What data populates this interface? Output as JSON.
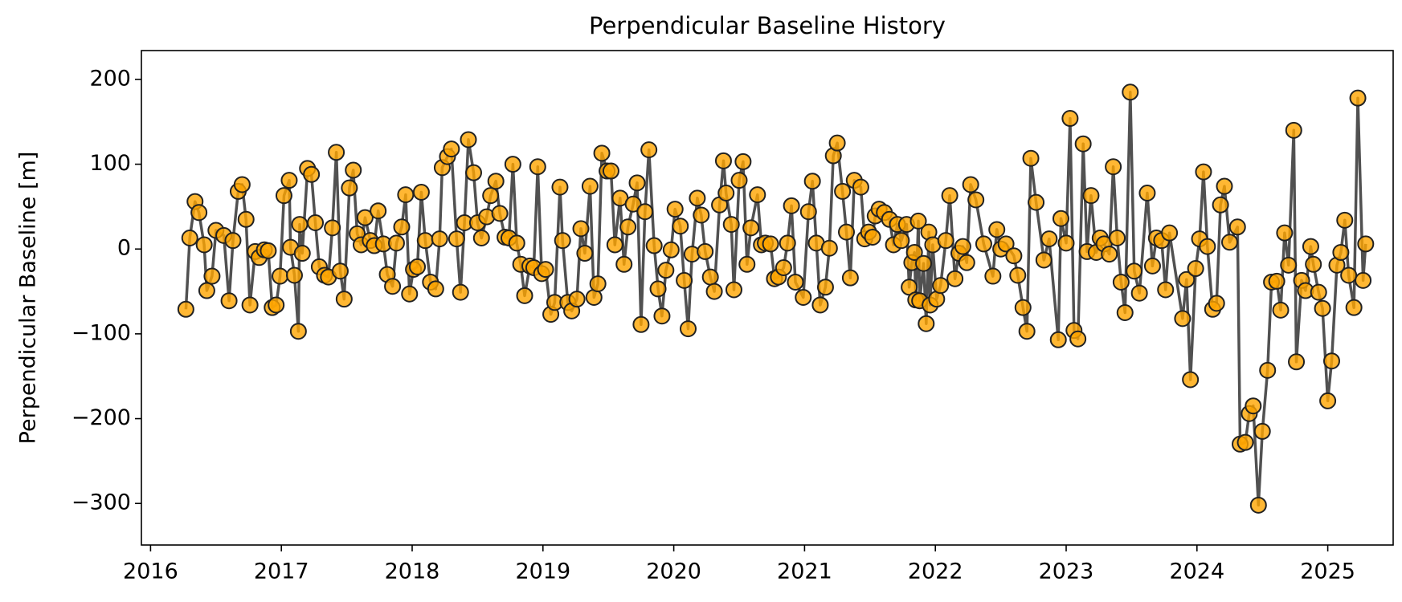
{
  "chart_data": {
    "type": "line",
    "title": "Perpendicular Baseline History",
    "ylabel": "Perpendicular Baseline [m]",
    "color": "#ffa500",
    "line_color": "#333333",
    "marker_edge_color": "#222222",
    "xlim": [
      2015.93,
      2025.5
    ],
    "ylim": [
      -349,
      234
    ],
    "xticks": [
      2016,
      2017,
      2018,
      2019,
      2020,
      2021,
      2022,
      2023,
      2024,
      2025
    ],
    "yticks": [
      {
        "value": -300,
        "label": "−300"
      },
      {
        "value": -200,
        "label": "−200"
      },
      {
        "value": -100,
        "label": "−100"
      },
      0,
      100,
      200
    ],
    "x": [
      2016.27,
      2016.3,
      2016.34,
      2016.37,
      2016.41,
      2016.43,
      2016.47,
      2016.5,
      2016.56,
      2016.6,
      2016.63,
      2016.67,
      2016.7,
      2016.73,
      2016.76,
      2016.8,
      2016.83,
      2016.87,
      2016.9,
      2016.93,
      2016.96,
      2016.99,
      2017.02,
      2017.06,
      2017.07,
      2017.1,
      2017.13,
      2017.14,
      2017.16,
      2017.2,
      2017.23,
      2017.26,
      2017.29,
      2017.33,
      2017.36,
      2017.39,
      2017.42,
      2017.45,
      2017.48,
      2017.52,
      2017.55,
      2017.58,
      2017.61,
      2017.64,
      2017.68,
      2017.71,
      2017.74,
      2017.78,
      2017.81,
      2017.85,
      2017.88,
      2017.92,
      2017.95,
      2017.98,
      2018.01,
      2018.04,
      2018.07,
      2018.1,
      2018.14,
      2018.18,
      2018.21,
      2018.23,
      2018.27,
      2018.3,
      2018.34,
      2018.37,
      2018.4,
      2018.43,
      2018.47,
      2018.5,
      2018.53,
      2018.57,
      2018.6,
      2018.64,
      2018.67,
      2018.71,
      2018.74,
      2018.77,
      2018.8,
      2018.83,
      2018.86,
      2018.9,
      2018.93,
      2018.96,
      2018.99,
      2019.02,
      2019.06,
      2019.09,
      2019.13,
      2019.15,
      2019.19,
      2019.22,
      2019.26,
      2019.29,
      2019.32,
      2019.36,
      2019.39,
      2019.42,
      2019.45,
      2019.49,
      2019.52,
      2019.55,
      2019.59,
      2019.62,
      2019.65,
      2019.69,
      2019.72,
      2019.75,
      2019.78,
      2019.81,
      2019.85,
      2019.88,
      2019.91,
      2019.94,
      2019.98,
      2020.01,
      2020.05,
      2020.08,
      2020.11,
      2020.14,
      2020.18,
      2020.21,
      2020.24,
      2020.28,
      2020.31,
      2020.35,
      2020.38,
      2020.4,
      2020.44,
      2020.46,
      2020.5,
      2020.53,
      2020.56,
      2020.59,
      2020.64,
      2020.67,
      2020.7,
      2020.74,
      2020.77,
      2020.8,
      2020.84,
      2020.87,
      2020.9,
      2020.93,
      2020.99,
      2021.03,
      2021.06,
      2021.09,
      2021.12,
      2021.16,
      2021.19,
      2021.22,
      2021.25,
      2021.29,
      2021.32,
      2021.35,
      2021.38,
      2021.43,
      2021.46,
      2021.49,
      2021.52,
      2021.54,
      2021.57,
      2021.61,
      2021.65,
      2021.68,
      2021.71,
      2021.74,
      2021.78,
      2021.8,
      2021.82,
      2021.84,
      2021.85,
      2021.87,
      2021.88,
      2021.91,
      2021.93,
      2021.95,
      2021.96,
      2021.98,
      2022.01,
      2022.04,
      2022.08,
      2022.11,
      2022.15,
      2022.18,
      2022.21,
      2022.24,
      2022.27,
      2022.31,
      2022.37,
      2022.44,
      2022.47,
      2022.5,
      2022.54,
      2022.6,
      2022.63,
      2022.67,
      2022.7,
      2022.73,
      2022.77,
      2022.83,
      2022.87,
      2022.94,
      2022.96,
      2023.0,
      2023.03,
      2023.06,
      2023.09,
      2023.13,
      2023.16,
      2023.19,
      2023.23,
      2023.26,
      2023.29,
      2023.33,
      2023.36,
      2023.39,
      2023.42,
      2023.45,
      2023.49,
      2023.52,
      2023.56,
      2023.62,
      2023.66,
      2023.69,
      2023.73,
      2023.76,
      2023.79,
      2023.89,
      2023.92,
      2023.95,
      2023.99,
      2024.02,
      2024.05,
      2024.08,
      2024.12,
      2024.15,
      2024.18,
      2024.21,
      2024.25,
      2024.31,
      2024.33,
      2024.37,
      2024.4,
      2024.43,
      2024.47,
      2024.5,
      2024.54,
      2024.57,
      2024.61,
      2024.64,
      2024.67,
      2024.7,
      2024.74,
      2024.76,
      2024.8,
      2024.83,
      2024.87,
      2024.89,
      2024.93,
      2024.96,
      2025.0,
      2025.03,
      2025.07,
      2025.1,
      2025.13,
      2025.16,
      2025.2,
      2025.23,
      2025.27,
      2025.29
    ],
    "values": [
      -71,
      13,
      56,
      43,
      5,
      -49,
      -32,
      22,
      16,
      -61,
      10,
      68,
      76,
      35,
      -66,
      -3,
      -10,
      -1,
      -2,
      -69,
      -66,
      -32,
      63,
      81,
      2,
      -31,
      -97,
      29,
      -5,
      95,
      88,
      31,
      -21,
      -31,
      -33,
      25,
      114,
      -26,
      -59,
      72,
      93,
      18,
      5,
      37,
      10,
      4,
      45,
      6,
      -30,
      -44,
      7,
      26,
      64,
      -53,
      -24,
      -21,
      67,
      10,
      -39,
      -47,
      12,
      96,
      109,
      118,
      12,
      -51,
      31,
      129,
      90,
      31,
      13,
      38,
      63,
      80,
      42,
      14,
      13,
      100,
      7,
      -18,
      -55,
      -20,
      -22,
      97,
      -29,
      -24,
      -77,
      -63,
      73,
      10,
      -63,
      -73,
      -59,
      24,
      -5,
      74,
      -57,
      -41,
      113,
      92,
      92,
      5,
      60,
      -18,
      26,
      53,
      78,
      -89,
      44,
      117,
      4,
      -47,
      -79,
      -25,
      -1,
      47,
      27,
      -37,
      -94,
      -6,
      60,
      40,
      -3,
      -33,
      -50,
      52,
      104,
      66,
      29,
      -48,
      81,
      103,
      -18,
      25,
      64,
      5,
      7,
      6,
      -35,
      -33,
      -22,
      7,
      51,
      -39,
      -57,
      44,
      80,
      7,
      -66,
      -45,
      1,
      110,
      125,
      68,
      20,
      -34,
      81,
      73,
      12,
      20,
      14,
      39,
      47,
      43,
      35,
      5,
      29,
      10,
      29,
      -45,
      -16,
      -4,
      -60,
      33,
      -61,
      -17,
      -88,
      20,
      -66,
      5,
      -59,
      -43,
      10,
      63,
      -35,
      -5,
      3,
      -16,
      76,
      58,
      6,
      -32,
      23,
      0,
      6,
      -8,
      -31,
      -69,
      -97,
      107,
      55,
      -13,
      12,
      -107,
      36,
      7,
      154,
      -96,
      -106,
      124,
      -3,
      63,
      -4,
      13,
      6,
      -6,
      97,
      13,
      -39,
      -75,
      185,
      -26,
      -52,
      66,
      -20,
      13,
      10,
      -48,
      19,
      -82,
      -36,
      -154,
      -23,
      12,
      91,
      3,
      -71,
      -64,
      52,
      74,
      8,
      26,
      -230,
      -228,
      -194,
      -185,
      -302,
      -215,
      -143,
      -39,
      -38,
      -72,
      19,
      -19,
      140,
      -133,
      -37,
      -49,
      3,
      -18,
      -51,
      -70,
      -179,
      -132,
      -19,
      -4,
      34,
      -31,
      -69,
      178,
      -37,
      6
    ]
  }
}
